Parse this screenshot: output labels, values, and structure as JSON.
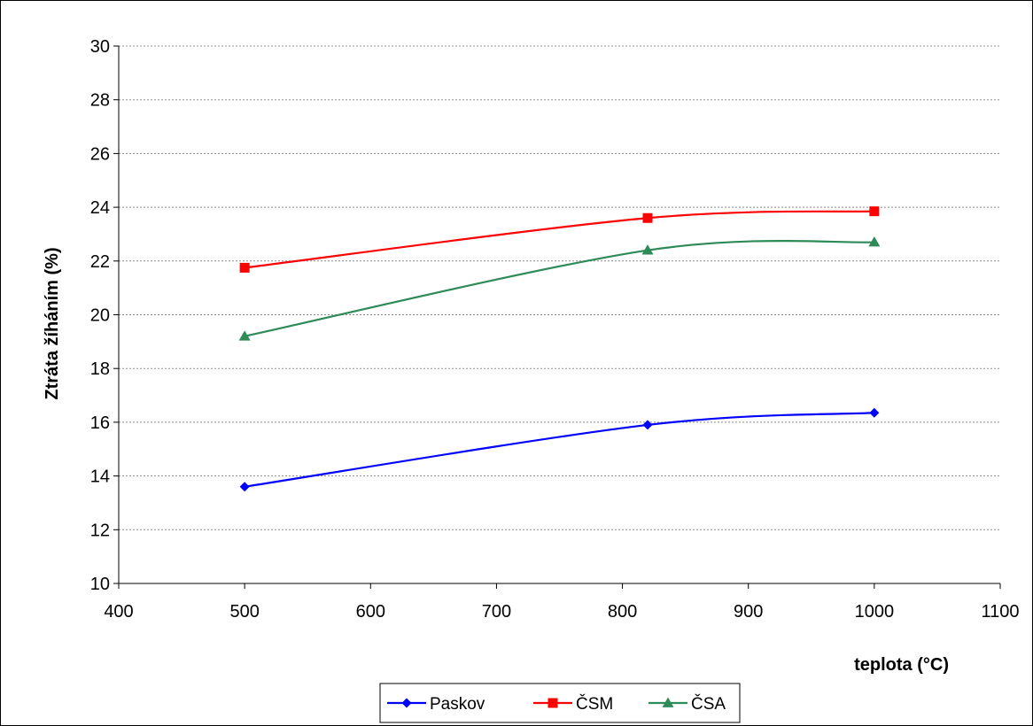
{
  "chart_data": {
    "type": "line",
    "xlabel": "teplota (°C)",
    "ylabel": "Ztráta žíháním (%)",
    "xlim": [
      400,
      1100
    ],
    "ylim": [
      10,
      30
    ],
    "xticks": [
      400,
      500,
      600,
      700,
      800,
      900,
      1000,
      1100
    ],
    "yticks": [
      10,
      12,
      14,
      16,
      18,
      20,
      22,
      24,
      26,
      28,
      30
    ],
    "grid": "horizontal, dashed",
    "legend_position": "bottom",
    "line_style": "smoothed",
    "series": [
      {
        "name": "Paskov",
        "color": "#0000FF",
        "marker": "diamond",
        "x": [
          500,
          820,
          1000
        ],
        "y": [
          13.6,
          15.9,
          16.35
        ]
      },
      {
        "name": "ČSM",
        "color": "#FF0000",
        "marker": "square",
        "x": [
          500,
          820,
          1000
        ],
        "y": [
          21.75,
          23.6,
          23.85
        ]
      },
      {
        "name": "ČSA",
        "color": "#2E8B57",
        "marker": "triangle",
        "x": [
          500,
          820,
          1000
        ],
        "y": [
          19.2,
          22.4,
          22.7
        ]
      }
    ]
  }
}
